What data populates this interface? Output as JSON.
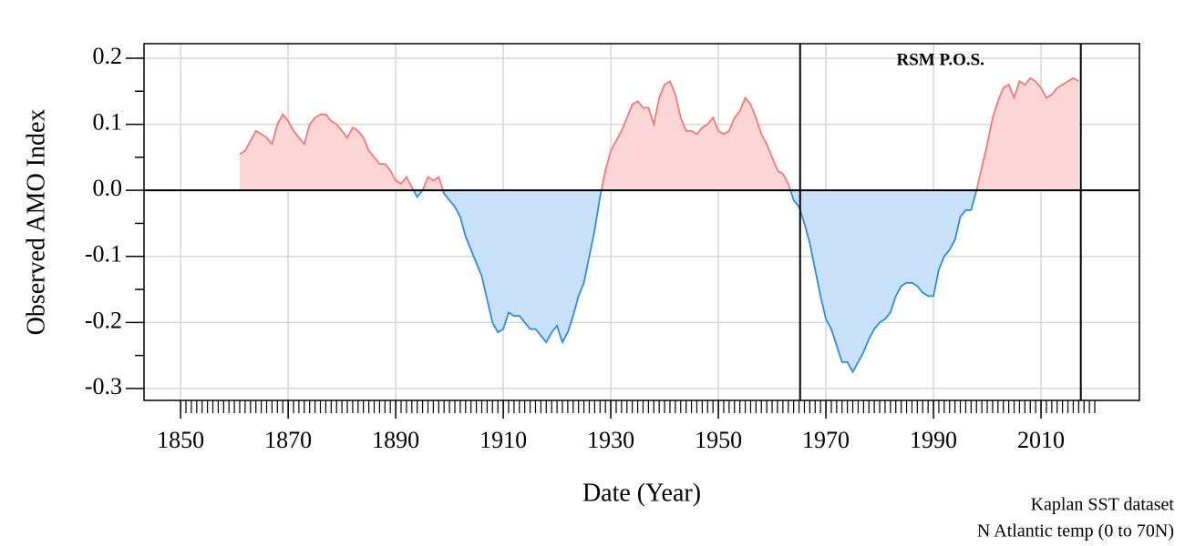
{
  "chart_data": {
    "type": "area",
    "x_label": "Date (Year)",
    "y_label": "Observed AMO Index",
    "annotation": "RSM P.O.S.",
    "footnotes": [
      "Kaplan SST dataset",
      "N Atlantic temp (0 to 70N)"
    ],
    "xlim": [
      1843.2,
      2028.3
    ],
    "ylim": [
      -0.318,
      0.222
    ],
    "xticks": [
      1850,
      1870,
      1890,
      1910,
      1930,
      1950,
      1970,
      1990,
      2010
    ],
    "xminorticks": [
      1850,
      1851,
      1852,
      1853,
      1854,
      1855,
      1856,
      1857,
      1858,
      1859,
      1860,
      1861,
      1862,
      1863,
      1864,
      1865,
      1866,
      1867,
      1868,
      1869,
      1870,
      1871,
      1872,
      1873,
      1874,
      1875,
      1876,
      1877,
      1878,
      1879,
      1880,
      1881,
      1882,
      1883,
      1884,
      1885,
      1886,
      1887,
      1888,
      1889,
      1890,
      1891,
      1892,
      1893,
      1894,
      1895,
      1896,
      1897,
      1898,
      1899,
      1900,
      1901,
      1902,
      1903,
      1904,
      1905,
      1906,
      1907,
      1908,
      1909,
      1910,
      1911,
      1912,
      1913,
      1914,
      1915,
      1916,
      1917,
      1918,
      1919,
      1920,
      1921,
      1922,
      1923,
      1924,
      1925,
      1926,
      1927,
      1928,
      1929,
      1930,
      1931,
      1932,
      1933,
      1934,
      1935,
      1936,
      1937,
      1938,
      1939,
      1940,
      1941,
      1942,
      1943,
      1944,
      1945,
      1946,
      1947,
      1948,
      1949,
      1950,
      1951,
      1952,
      1953,
      1954,
      1955,
      1956,
      1957,
      1958,
      1959,
      1960,
      1961,
      1962,
      1963,
      1964,
      1965,
      1966,
      1967,
      1968,
      1969,
      1970,
      1971,
      1972,
      1973,
      1974,
      1975,
      1976,
      1977,
      1978,
      1979,
      1980,
      1981,
      1982,
      1983,
      1984,
      1985,
      1986,
      1987,
      1988,
      1989,
      1990,
      1991,
      1992,
      1993,
      1994,
      1995,
      1996,
      1997,
      1998,
      1999,
      2000,
      2001,
      2002,
      2003,
      2004,
      2005,
      2006,
      2007,
      2008,
      2009,
      2010,
      2011,
      2012,
      2013,
      2014,
      2015,
      2016,
      2017,
      2018,
      2019,
      2020
    ],
    "yticks": [
      0.2,
      0.1,
      {
        "value": 0,
        "label": "0.0"
      },
      -0.1,
      -0.2,
      -0.3
    ],
    "yminorticks": [
      0.15,
      0.05,
      -0.05,
      -0.15,
      -0.25
    ],
    "vlines": [
      1965.2,
      2017.4
    ],
    "grid": true,
    "positive_color": "#f07a7a",
    "positive_fill": "#fcd6d6",
    "negative_color": "#2e8be0",
    "negative_fill": "#c8e1f9",
    "x": [
      1861,
      1862,
      1863,
      1864,
      1865,
      1866,
      1867,
      1868,
      1869,
      1870,
      1871,
      1872,
      1873,
      1874,
      1875,
      1876,
      1877,
      1878,
      1879,
      1880,
      1881,
      1882,
      1883,
      1884,
      1885,
      1886,
      1887,
      1888,
      1889,
      1890,
      1891,
      1892,
      1893,
      1894,
      1895,
      1896,
      1897,
      1898,
      1899,
      1900,
      1901,
      1902,
      1903,
      1904,
      1905,
      1906,
      1907,
      1908,
      1909,
      1910,
      1911,
      1912,
      1913,
      1914,
      1915,
      1916,
      1917,
      1918,
      1919,
      1920,
      1921,
      1922,
      1923,
      1924,
      1925,
      1926,
      1927,
      1928,
      1929,
      1930,
      1931,
      1932,
      1933,
      1934,
      1935,
      1936,
      1937,
      1938,
      1939,
      1940,
      1941,
      1942,
      1943,
      1944,
      1945,
      1946,
      1947,
      1948,
      1949,
      1950,
      1951,
      1952,
      1953,
      1954,
      1955,
      1956,
      1957,
      1958,
      1959,
      1960,
      1961,
      1962,
      1963,
      1964,
      1965,
      1966,
      1967,
      1968,
      1969,
      1970,
      1971,
      1972,
      1973,
      1974,
      1975,
      1976,
      1977,
      1978,
      1979,
      1980,
      1981,
      1982,
      1983,
      1984,
      1985,
      1986,
      1987,
      1988,
      1989,
      1990,
      1991,
      1992,
      1993,
      1994,
      1995,
      1996,
      1997,
      1998,
      1999,
      2000,
      2001,
      2002,
      2003,
      2004,
      2005,
      2006,
      2007,
      2008,
      2009,
      2010,
      2011,
      2012,
      2013,
      2014,
      2015,
      2016,
      2017
    ],
    "values": [
      0.055,
      0.06,
      0.075,
      0.09,
      0.085,
      0.08,
      0.07,
      0.1,
      0.115,
      0.105,
      0.09,
      0.08,
      0.07,
      0.1,
      0.11,
      0.115,
      0.115,
      0.105,
      0.1,
      0.09,
      0.08,
      0.095,
      0.09,
      0.08,
      0.06,
      0.05,
      0.04,
      0.04,
      0.03,
      0.015,
      0.01,
      0.02,
      0.005,
      -0.01,
      0.0,
      0.02,
      0.015,
      0.02,
      -0.005,
      -0.015,
      -0.025,
      -0.04,
      -0.07,
      -0.09,
      -0.11,
      -0.13,
      -0.165,
      -0.2,
      -0.215,
      -0.21,
      -0.185,
      -0.19,
      -0.19,
      -0.2,
      -0.21,
      -0.21,
      -0.22,
      -0.23,
      -0.215,
      -0.205,
      -0.23,
      -0.215,
      -0.19,
      -0.16,
      -0.14,
      -0.1,
      -0.06,
      -0.01,
      0.03,
      0.06,
      0.075,
      0.09,
      0.11,
      0.13,
      0.135,
      0.125,
      0.125,
      0.1,
      0.14,
      0.16,
      0.165,
      0.145,
      0.11,
      0.09,
      0.09,
      0.085,
      0.095,
      0.1,
      0.11,
      0.09,
      0.085,
      0.09,
      0.11,
      0.12,
      0.14,
      0.13,
      0.11,
      0.085,
      0.07,
      0.05,
      0.03,
      0.025,
      0.01,
      -0.015,
      -0.025,
      -0.05,
      -0.08,
      -0.12,
      -0.16,
      -0.195,
      -0.21,
      -0.235,
      -0.26,
      -0.26,
      -0.275,
      -0.26,
      -0.245,
      -0.225,
      -0.21,
      -0.2,
      -0.195,
      -0.185,
      -0.16,
      -0.145,
      -0.14,
      -0.14,
      -0.145,
      -0.155,
      -0.16,
      -0.16,
      -0.12,
      -0.1,
      -0.09,
      -0.075,
      -0.04,
      -0.03,
      -0.03,
      0.0,
      0.035,
      0.07,
      0.11,
      0.135,
      0.155,
      0.16,
      0.14,
      0.165,
      0.16,
      0.17,
      0.165,
      0.155,
      0.14,
      0.145,
      0.155,
      0.16,
      0.165,
      0.17,
      0.165
    ]
  }
}
